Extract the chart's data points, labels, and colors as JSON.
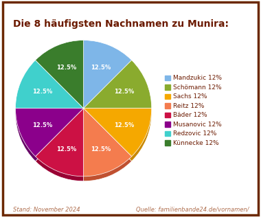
{
  "title": "Die 8 häufigsten Nachnamen zu Munira:",
  "title_color": "#6b1a00",
  "labels": [
    "Mandzukic",
    "Schömann",
    "Sachs",
    "Reitz",
    "Bäder",
    "Musanovic",
    "Redzovic",
    "Künnecke"
  ],
  "values": [
    12.5,
    12.5,
    12.5,
    12.5,
    12.5,
    12.5,
    12.5,
    12.5
  ],
  "colors": [
    "#7eb6e8",
    "#8aab2e",
    "#f5a800",
    "#f47c4e",
    "#cc1144",
    "#8b008b",
    "#40d0cc",
    "#3a7d2c"
  ],
  "shadow_colors": [
    "#5a8abf",
    "#6a8520",
    "#c88800",
    "#c05030",
    "#990033",
    "#660066",
    "#20a0a0",
    "#285a20"
  ],
  "legend_labels": [
    "Mandzukic 12%",
    "Schömann 12%",
    "Sachs 12%",
    "Reitz 12%",
    "Bäder 12%",
    "Musanovic 12%",
    "Redzovic 12%",
    "Künnecke 12%"
  ],
  "pct_label": "12.5%",
  "pct_color": "white",
  "footer_left": "Stand: November 2024",
  "footer_right": "Quelle: familienbande24.de/vornamen/",
  "footer_color": "#b07050",
  "border_color": "#6b2800",
  "background_color": "#ffffff",
  "startangle": 90
}
